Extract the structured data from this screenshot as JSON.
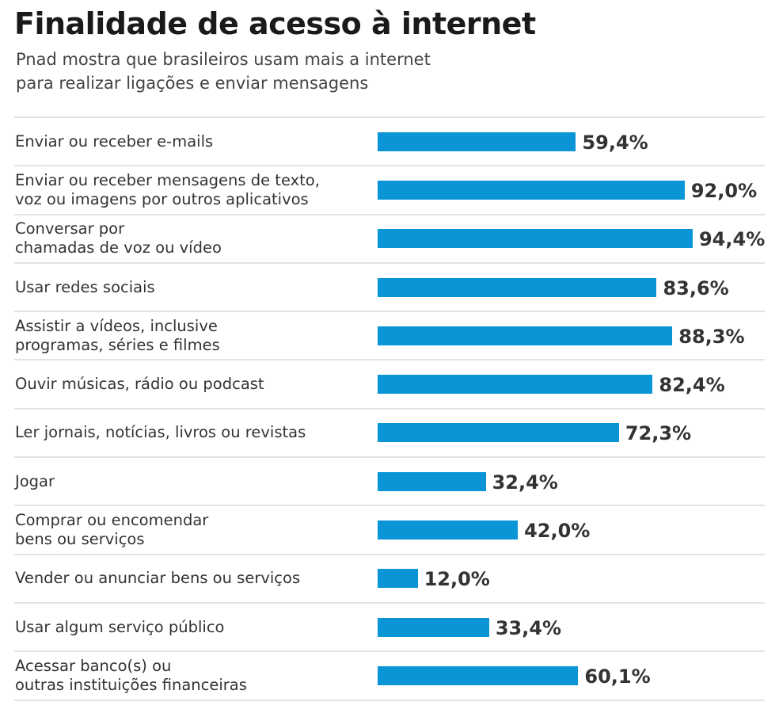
{
  "chart_data": {
    "type": "bar",
    "orientation": "horizontal",
    "title": "Finalidade de acesso à internet",
    "subtitle": "Pnad mostra que brasileiros usam mais a internet\npara realizar ligações e enviar mensagens",
    "categories": [
      "Enviar ou receber e-mails",
      "Enviar ou receber mensagens de texto,\nvoz ou imagens por outros aplicativos",
      "Conversar por\nchamadas de voz ou vídeo",
      "Usar redes sociais",
      "Assistir a vídeos, inclusive\nprogramas, séries e filmes",
      "Ouvir músicas, rádio ou podcast",
      "Ler jornais, notícias, livros ou revistas",
      "Jogar",
      "Comprar ou encomendar\nbens ou serviços",
      "Vender ou anunciar bens ou serviços",
      "Usar algum serviço público",
      "Acessar banco(s) ou\noutras instituições financeiras"
    ],
    "values": [
      59.4,
      92.0,
      94.4,
      83.6,
      88.3,
      82.4,
      72.3,
      32.4,
      42.0,
      12.0,
      33.4,
      60.1
    ],
    "value_labels": [
      "59,4%",
      "92,0%",
      "94,4%",
      "83,6%",
      "88,3%",
      "82,4%",
      "72,3%",
      "32,4%",
      "42,0%",
      "12,0%",
      "33,4%",
      "60,1%"
    ],
    "xlim": [
      0,
      100
    ],
    "grid": false,
    "bar_color": "#0995d6"
  }
}
